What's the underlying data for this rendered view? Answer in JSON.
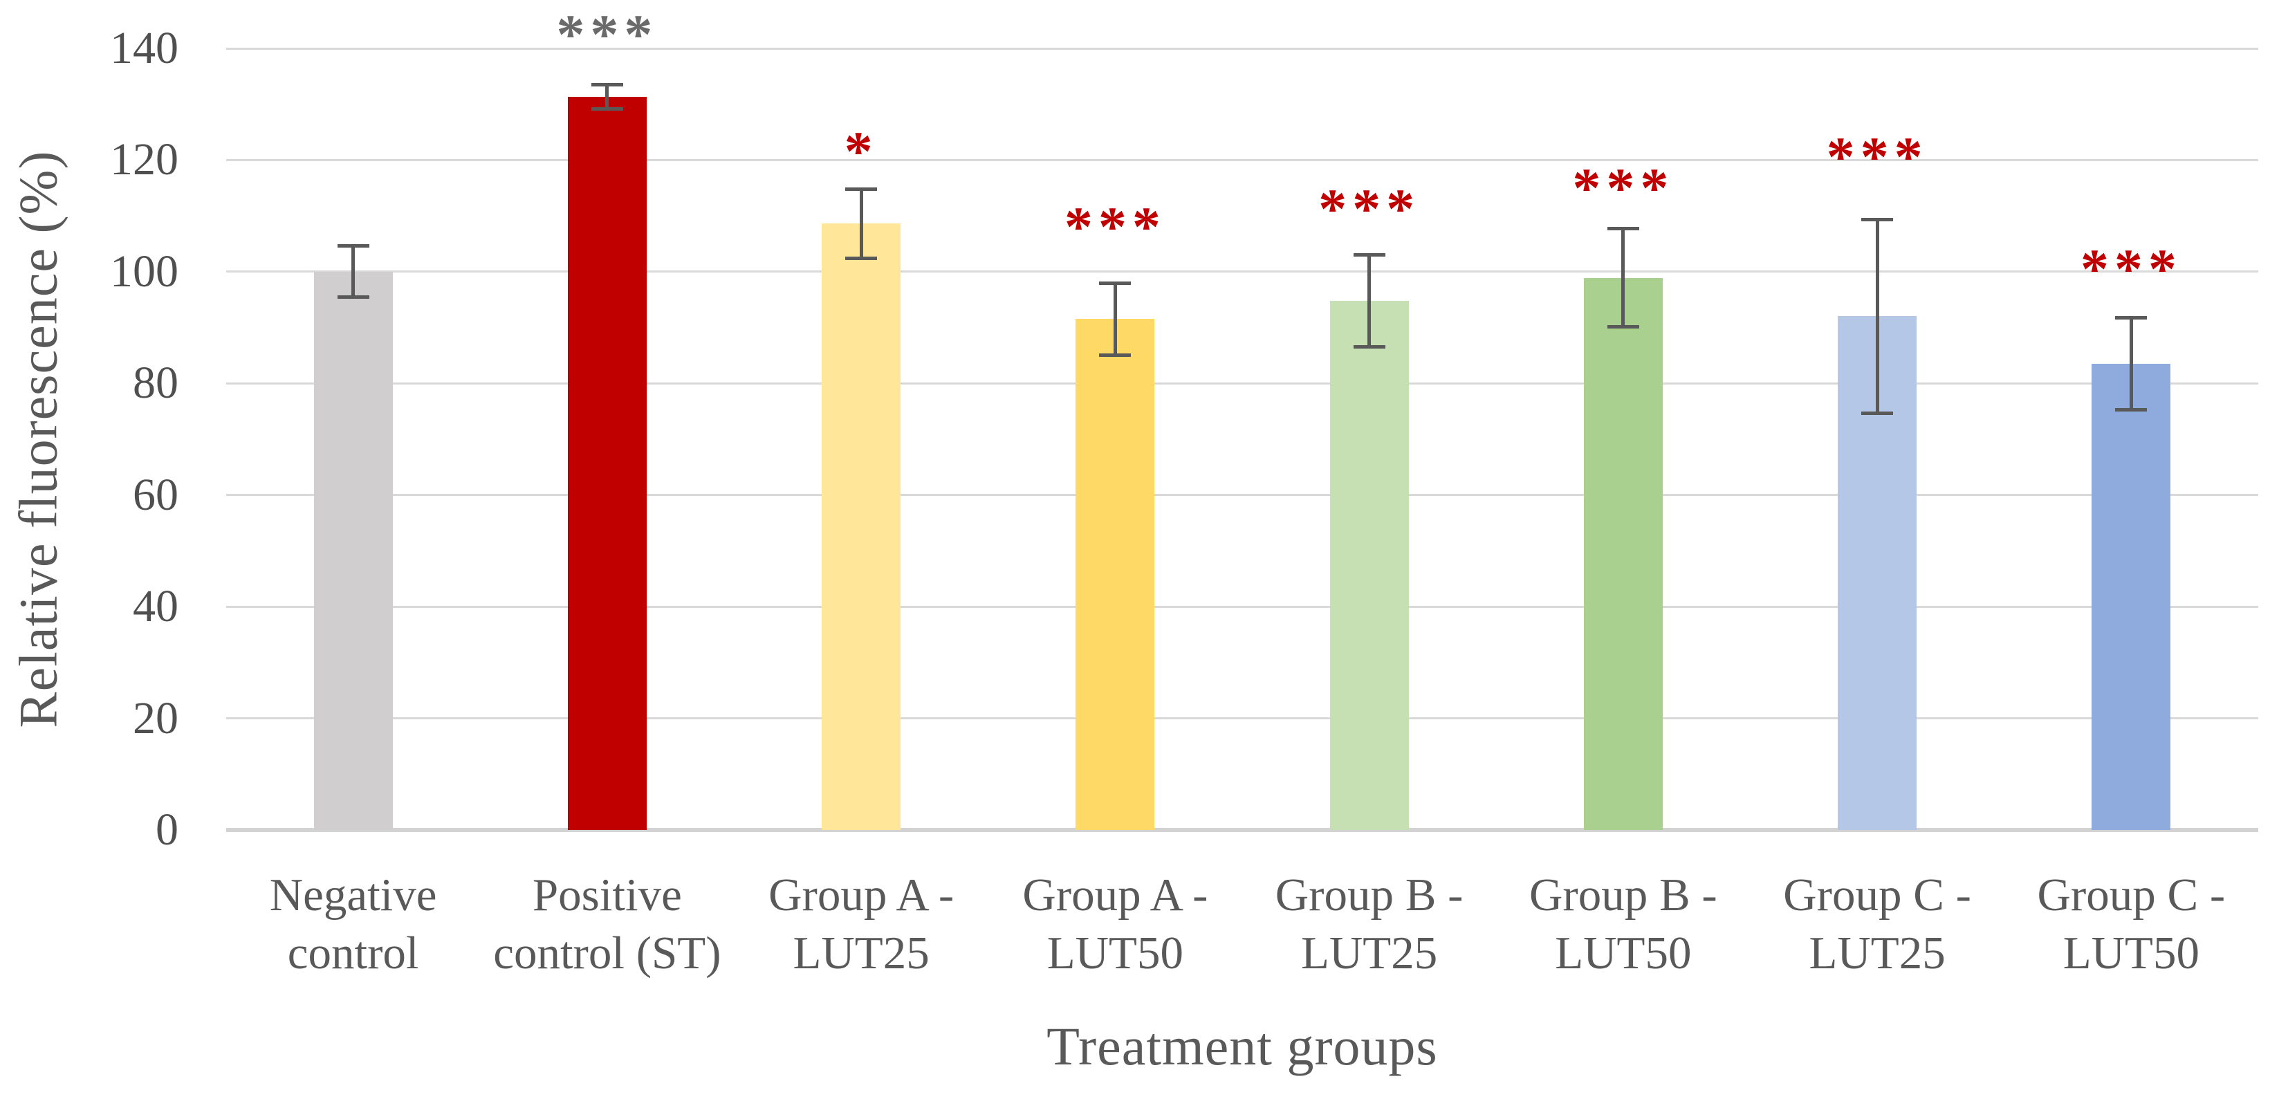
{
  "chart_data": {
    "type": "bar",
    "title": "",
    "xlabel": "Treatment groups",
    "ylabel": "Relative fluorescence (%)",
    "ylim": [
      0,
      140
    ],
    "yticks": [
      0,
      20,
      40,
      60,
      80,
      100,
      120,
      140
    ],
    "grid": true,
    "legend": "none",
    "categories": [
      "Negative control",
      "Positive control (ST)",
      "Group A - LUT25",
      "Group A - LUT50",
      "Group B - LUT25",
      "Group B - LUT50",
      "Group C - LUT25",
      "Group C - LUT50"
    ],
    "category_lines": [
      [
        "Negative",
        "control"
      ],
      [
        "Positive",
        "control (ST)"
      ],
      [
        "Group A -",
        "LUT25"
      ],
      [
        "Group A -",
        "LUT50"
      ],
      [
        "Group B -",
        "LUT25"
      ],
      [
        "Group B -",
        "LUT50"
      ],
      [
        "Group C -",
        "LUT25"
      ],
      [
        "Group C -",
        "LUT50"
      ]
    ],
    "series": [
      {
        "name": "Relative fluorescence (%)",
        "values": [
          100.0,
          131.3,
          108.6,
          91.5,
          94.8,
          98.9,
          92.0,
          83.5
        ],
        "errors": [
          4.6,
          2.2,
          6.2,
          6.5,
          8.2,
          8.8,
          17.3,
          8.2
        ],
        "significance": [
          "",
          "***",
          "*",
          "***",
          "***",
          "***",
          "***",
          "***"
        ],
        "significance_y": [
          null,
          142.5,
          121.5,
          108.0,
          111.2,
          115.0,
          120.5,
          100.5
        ],
        "significance_colors": [
          "",
          "#6a6a6a",
          "#c00000",
          "#c00000",
          "#c00000",
          "#c00000",
          "#c00000",
          "#c00000"
        ],
        "bar_colors": [
          "#d0cece",
          "#c00000",
          "#ffe699",
          "#ffd966",
          "#c6e0b4",
          "#a9d08e",
          "#b4c7e7",
          "#8faadc"
        ]
      }
    ],
    "colors": {
      "gridline": "#d9d9d9",
      "axis_line": "#d2d2d2",
      "error_bar": "#595959",
      "tick_label": "#4f4f4f",
      "axis_title": "#595959",
      "sig_red": "#c00000",
      "sig_gray": "#6a6a6a"
    }
  }
}
